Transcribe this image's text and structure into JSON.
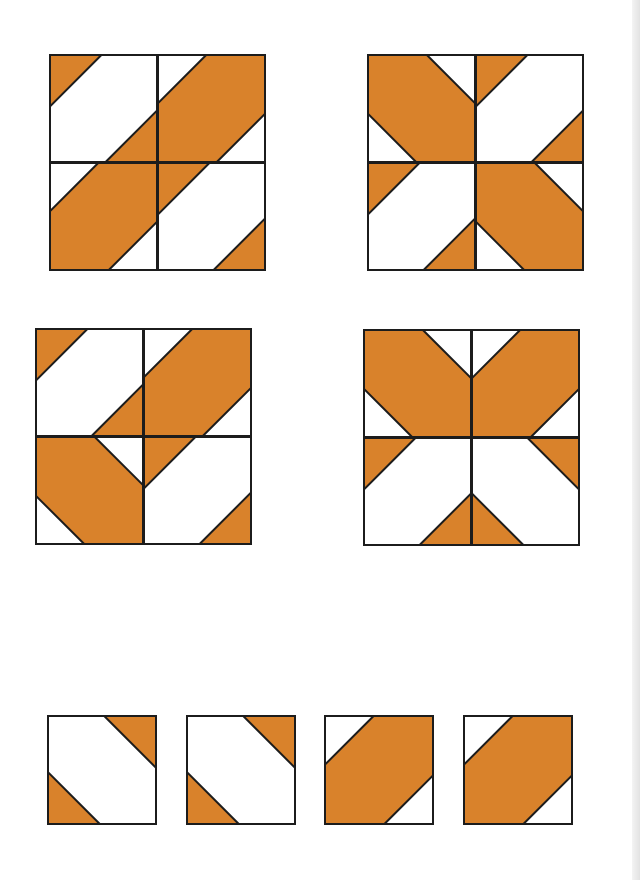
{
  "colors": {
    "paper": "#ffffff",
    "fabric": "#d9822b",
    "outline": "#1c1c1c"
  },
  "block_patterns": [
    {
      "name": "pinwheel-variation",
      "unit_rotations": [
        0,
        90,
        270,
        180
      ]
    },
    {
      "name": "diagonal-band",
      "unit_rotations": [
        0,
        0,
        0,
        0
      ]
    },
    {
      "name": "zigzag",
      "unit_rotations": [
        0,
        90,
        0,
        0
      ]
    },
    {
      "name": "chevron-v",
      "unit_rotations": [
        0,
        90,
        0,
        90
      ]
    }
  ],
  "single_units": [
    {
      "name": "unit-corners",
      "type": "corner-triangles",
      "rotation": 90
    },
    {
      "name": "unit-corners",
      "type": "corner-triangles",
      "rotation": 90
    },
    {
      "name": "unit-band",
      "type": "diagonal-band",
      "rotation": 90
    },
    {
      "name": "unit-band",
      "type": "diagonal-band",
      "rotation": 90
    }
  ]
}
